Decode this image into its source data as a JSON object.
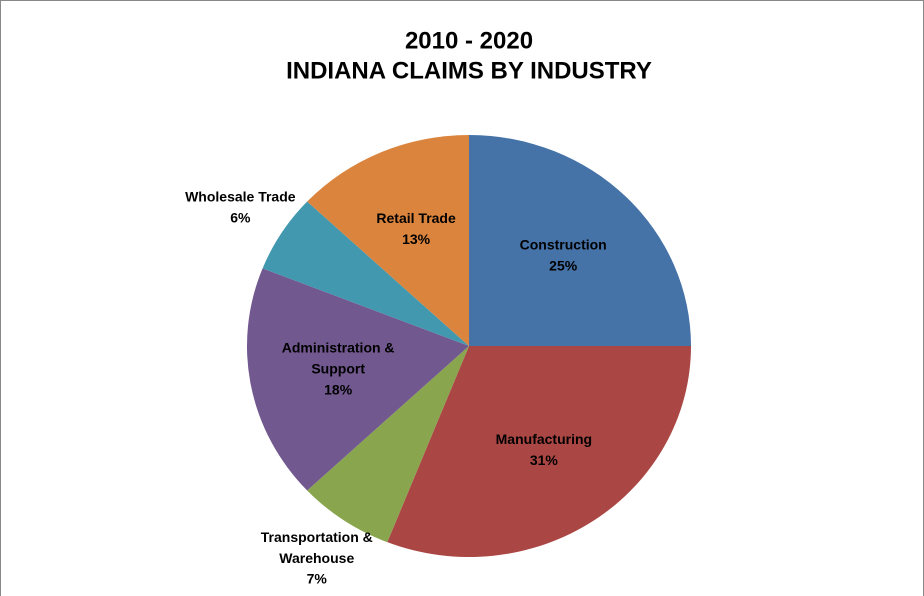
{
  "chart_data": {
    "type": "pie",
    "title": "2010 - 2020",
    "subtitle": "INDIANA CLAIMS BY INDUSTRY",
    "categories": [
      "Construction",
      "Manufacturing",
      "Transportation & Warehouse",
      "Administration & Support",
      "Wholesale Trade",
      "Retail Trade"
    ],
    "values": [
      25,
      31,
      7,
      18,
      6,
      13
    ],
    "value_labels": [
      "25%",
      "31%",
      "7%",
      "18%",
      "6%",
      "13%"
    ],
    "colors": [
      "#4572a7",
      "#aa4643",
      "#89a54e",
      "#71588f",
      "#4198af",
      "#db843d"
    ]
  }
}
